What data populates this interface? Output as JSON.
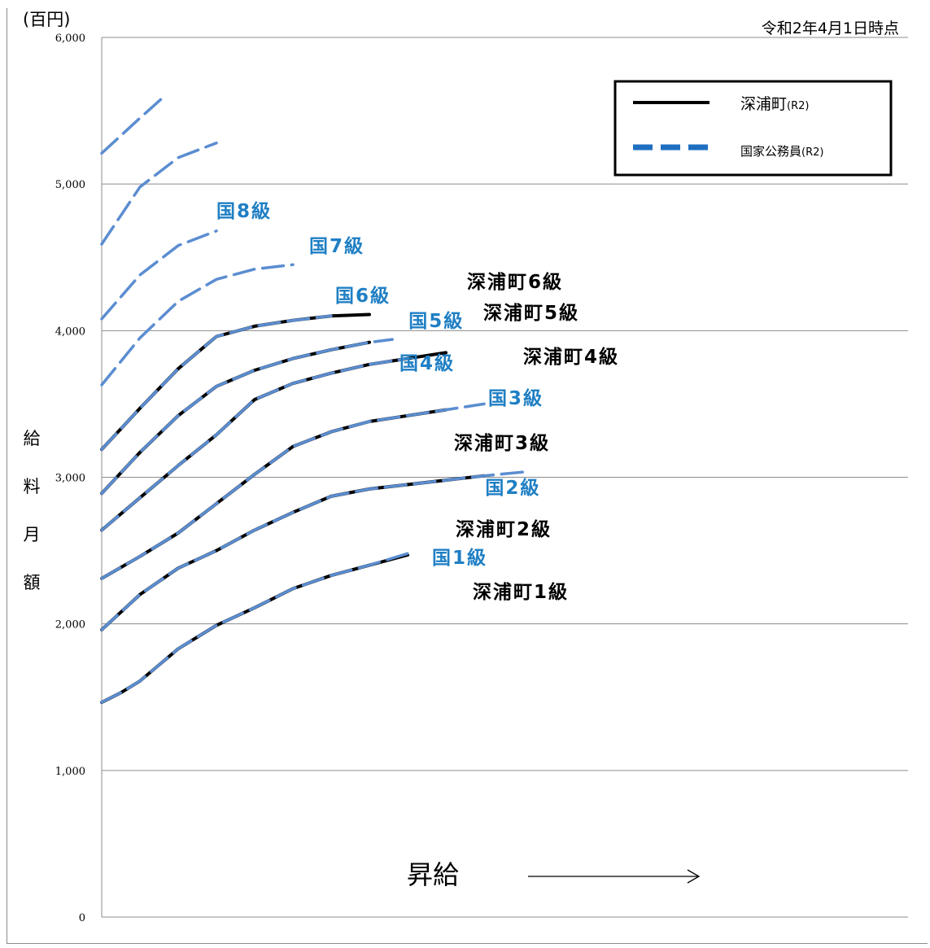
{
  "chart_data": {
    "type": "line",
    "unit_label": "(百円)",
    "as_of": "令和2年4月1日時点",
    "ylabel": "給\n料\n月\n額",
    "xlabel": "昇給",
    "ylim": [
      0,
      6000
    ],
    "yticks": [
      "0",
      "1,000",
      "2,000",
      "3,000",
      "4,000",
      "5,000",
      "6,000"
    ],
    "grid": "horizontal",
    "legend": {
      "position": "top-right",
      "entries": [
        {
          "label": "深浦町",
          "suffix": "(R2)",
          "style": "solid",
          "color": "#000000"
        },
        {
          "label": "国家公務員",
          "suffix": "(R2)",
          "style": "dashed",
          "color": "#5b8dd0"
        }
      ]
    },
    "series": [
      {
        "name": "深浦町1級",
        "style": "town",
        "points": [
          [
            0,
            1465
          ],
          [
            0.5,
            1530
          ],
          [
            1,
            1610
          ],
          [
            1.5,
            1720
          ],
          [
            2,
            1830
          ],
          [
            3,
            1990
          ],
          [
            4,
            2110
          ],
          [
            5,
            2240
          ],
          [
            6,
            2330
          ],
          [
            7,
            2400
          ],
          [
            8,
            2470
          ]
        ]
      },
      {
        "name": "国1級",
        "style": "nat",
        "points": [
          [
            0,
            1465
          ],
          [
            0.5,
            1530
          ],
          [
            1,
            1610
          ],
          [
            1.5,
            1720
          ],
          [
            2,
            1830
          ],
          [
            3,
            1990
          ],
          [
            4,
            2110
          ],
          [
            5,
            2240
          ],
          [
            6,
            2330
          ],
          [
            7,
            2400
          ],
          [
            8,
            2480
          ]
        ]
      },
      {
        "name": "深浦町2級",
        "style": "town",
        "points": [
          [
            0,
            1960
          ],
          [
            0.5,
            2080
          ],
          [
            1,
            2200
          ],
          [
            2,
            2380
          ],
          [
            3,
            2500
          ],
          [
            4,
            2640
          ],
          [
            5,
            2760
          ],
          [
            6,
            2870
          ],
          [
            7,
            2920
          ],
          [
            8,
            2950
          ],
          [
            10,
            3010
          ]
        ]
      },
      {
        "name": "国2級",
        "style": "nat",
        "points": [
          [
            0,
            1960
          ],
          [
            0.5,
            2080
          ],
          [
            1,
            2200
          ],
          [
            2,
            2380
          ],
          [
            3,
            2500
          ],
          [
            4,
            2640
          ],
          [
            5,
            2760
          ],
          [
            6,
            2870
          ],
          [
            7,
            2920
          ],
          [
            8,
            2950
          ],
          [
            10,
            3010
          ],
          [
            11.2,
            3040
          ]
        ]
      },
      {
        "name": "深浦町3級",
        "style": "town",
        "points": [
          [
            0,
            2310
          ],
          [
            1,
            2460
          ],
          [
            2,
            2620
          ],
          [
            3,
            2820
          ],
          [
            4,
            3020
          ],
          [
            5,
            3210
          ],
          [
            6,
            3310
          ],
          [
            7,
            3380
          ],
          [
            8,
            3420
          ],
          [
            9,
            3460
          ]
        ]
      },
      {
        "name": "国3級",
        "style": "nat",
        "points": [
          [
            0,
            2310
          ],
          [
            1,
            2460
          ],
          [
            2,
            2620
          ],
          [
            3,
            2820
          ],
          [
            4,
            3020
          ],
          [
            5,
            3210
          ],
          [
            6,
            3310
          ],
          [
            7,
            3380
          ],
          [
            8,
            3420
          ],
          [
            9,
            3460
          ],
          [
            10,
            3500
          ]
        ]
      },
      {
        "name": "深浦町4級",
        "style": "town",
        "points": [
          [
            0,
            2640
          ],
          [
            1,
            2860
          ],
          [
            2,
            3080
          ],
          [
            3,
            3290
          ],
          [
            4,
            3530
          ],
          [
            5,
            3640
          ],
          [
            6,
            3710
          ],
          [
            7,
            3770
          ],
          [
            8,
            3810
          ],
          [
            9,
            3850
          ]
        ]
      },
      {
        "name": "国4級",
        "style": "nat",
        "points": [
          [
            0,
            2640
          ],
          [
            1,
            2860
          ],
          [
            2,
            3080
          ],
          [
            3,
            3290
          ],
          [
            4,
            3530
          ],
          [
            5,
            3640
          ],
          [
            6,
            3710
          ],
          [
            7,
            3770
          ],
          [
            8,
            3810
          ]
        ]
      },
      {
        "name": "深浦町5級",
        "style": "town",
        "points": [
          [
            0,
            2890
          ],
          [
            1,
            3170
          ],
          [
            2,
            3420
          ],
          [
            3,
            3620
          ],
          [
            4,
            3730
          ],
          [
            5,
            3810
          ],
          [
            6,
            3870
          ],
          [
            7,
            3920
          ]
        ]
      },
      {
        "name": "国5級",
        "style": "nat",
        "points": [
          [
            0,
            2890
          ],
          [
            1,
            3170
          ],
          [
            2,
            3420
          ],
          [
            3,
            3620
          ],
          [
            4,
            3730
          ],
          [
            5,
            3810
          ],
          [
            6,
            3870
          ],
          [
            7,
            3920
          ],
          [
            7.6,
            3940
          ]
        ]
      },
      {
        "name": "深浦町6級",
        "style": "town",
        "points": [
          [
            0,
            3190
          ],
          [
            1,
            3470
          ],
          [
            2,
            3740
          ],
          [
            3,
            3960
          ],
          [
            4,
            4030
          ],
          [
            5,
            4070
          ],
          [
            6,
            4100
          ],
          [
            7,
            4110
          ]
        ]
      },
      {
        "name": "国6級",
        "style": "nat",
        "points": [
          [
            0,
            3190
          ],
          [
            1,
            3470
          ],
          [
            2,
            3740
          ],
          [
            3,
            3960
          ],
          [
            4,
            4030
          ],
          [
            5,
            4070
          ],
          [
            6,
            4100
          ]
        ]
      },
      {
        "name": "国7級",
        "style": "nat",
        "points": [
          [
            0,
            3630
          ],
          [
            1,
            3950
          ],
          [
            2,
            4200
          ],
          [
            3,
            4350
          ],
          [
            4,
            4420
          ],
          [
            5,
            4450
          ]
        ]
      },
      {
        "name": "国8級",
        "style": "nat",
        "points": [
          [
            0,
            4080
          ],
          [
            1,
            4380
          ],
          [
            2,
            4580
          ],
          [
            3,
            4680
          ]
        ]
      },
      {
        "name": "",
        "style": "nat",
        "points": [
          [
            0,
            4590
          ],
          [
            1,
            4980
          ],
          [
            2,
            5180
          ],
          [
            3,
            5280
          ]
        ]
      },
      {
        "name": "",
        "style": "nat",
        "points": [
          [
            0,
            5210
          ],
          [
            1,
            5450
          ],
          [
            1.6,
            5590
          ]
        ]
      }
    ],
    "labels": [
      {
        "text": "国8級",
        "style": "nat",
        "ref": "国8級"
      },
      {
        "text": "国7級",
        "style": "nat",
        "ref": "国7級"
      },
      {
        "text": "国6級",
        "style": "nat",
        "ref": "国6級"
      },
      {
        "text": "深浦町6級",
        "style": "town",
        "ref": "深浦町6級"
      },
      {
        "text": "国5級",
        "style": "nat",
        "ref": "国5級"
      },
      {
        "text": "深浦町5級",
        "style": "town",
        "ref": "深浦町5級"
      },
      {
        "text": "国4級",
        "style": "nat",
        "ref": "国4級"
      },
      {
        "text": "深浦町4級",
        "style": "town",
        "ref": "深浦町4級"
      },
      {
        "text": "国3級",
        "style": "nat",
        "ref": "国3級"
      },
      {
        "text": "深浦町3級",
        "style": "town",
        "ref": "深浦町3級"
      },
      {
        "text": "国2級",
        "style": "nat",
        "ref": "国2級"
      },
      {
        "text": "深浦町2級",
        "style": "town",
        "ref": "深浦町2級"
      },
      {
        "text": "国1級",
        "style": "nat",
        "ref": "国1級"
      },
      {
        "text": "深浦町1級",
        "style": "town",
        "ref": "深浦町1級"
      }
    ]
  }
}
